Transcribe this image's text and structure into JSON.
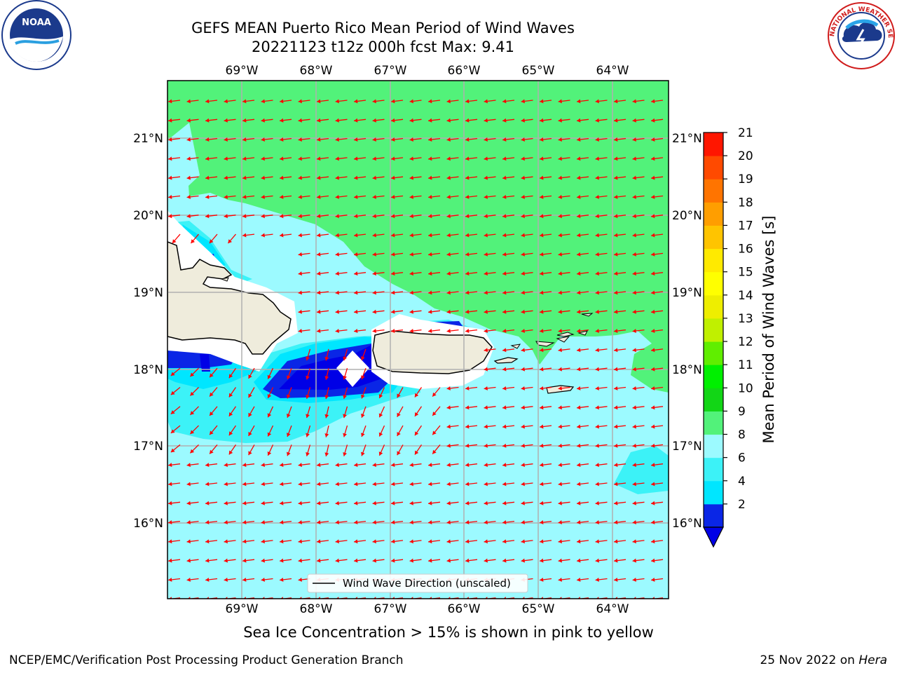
{
  "header": {
    "title_line1": "GEFS MEAN Puerto Rico Mean Period of Wind Waves",
    "title_line2": "20221123 t12z 000h fcst   Max: 9.41"
  },
  "map": {
    "region": "Puerto Rico",
    "lon_labels": [
      "69°W",
      "68°W",
      "67°W",
      "66°W",
      "65°W",
      "64°W"
    ],
    "lat_labels": [
      "21°N",
      "20°N",
      "19°N",
      "18°N",
      "17°N",
      "16°N"
    ],
    "legend_text": "Wind Wave Direction (unscaled)",
    "arrow_color": "#ff0000",
    "land_color": "#efecdc"
  },
  "colorbar": {
    "label": "Mean Period of Wind Waves [s]",
    "tick_labels": [
      "21",
      "20",
      "19",
      "18",
      "17",
      "16",
      "15",
      "14",
      "13",
      "12",
      "11",
      "10",
      "9",
      "8",
      "6",
      "4",
      "2"
    ],
    "levels": [
      2,
      4,
      6,
      8,
      9,
      10,
      11,
      12,
      13,
      14,
      15,
      16,
      17,
      18,
      19,
      20,
      21
    ],
    "colors": [
      "#0a26e6",
      "#00e6ff",
      "#3cf2f7",
      "#9cfaff",
      "#52f27a",
      "#12d616",
      "#00f000",
      "#60ee00",
      "#c0f000",
      "#eeee00",
      "#ffff00",
      "#ffea00",
      "#ffc400",
      "#ff9e00",
      "#ff7400",
      "#ff4a00",
      "#ff1600"
    ],
    "under_color": "#0000e6"
  },
  "footer": {
    "caption": "Sea Ice Concentration > 15% is shown in pink to yellow",
    "credit": "NCEP/EMC/Verification Post Processing Product Generation Branch",
    "date_prefix": "25 Nov 2022 on ",
    "date_system": "Hera"
  },
  "logos": {
    "noaa_text": "NOAA",
    "nws_text": "NATIONAL WEATHER SERVICE"
  }
}
